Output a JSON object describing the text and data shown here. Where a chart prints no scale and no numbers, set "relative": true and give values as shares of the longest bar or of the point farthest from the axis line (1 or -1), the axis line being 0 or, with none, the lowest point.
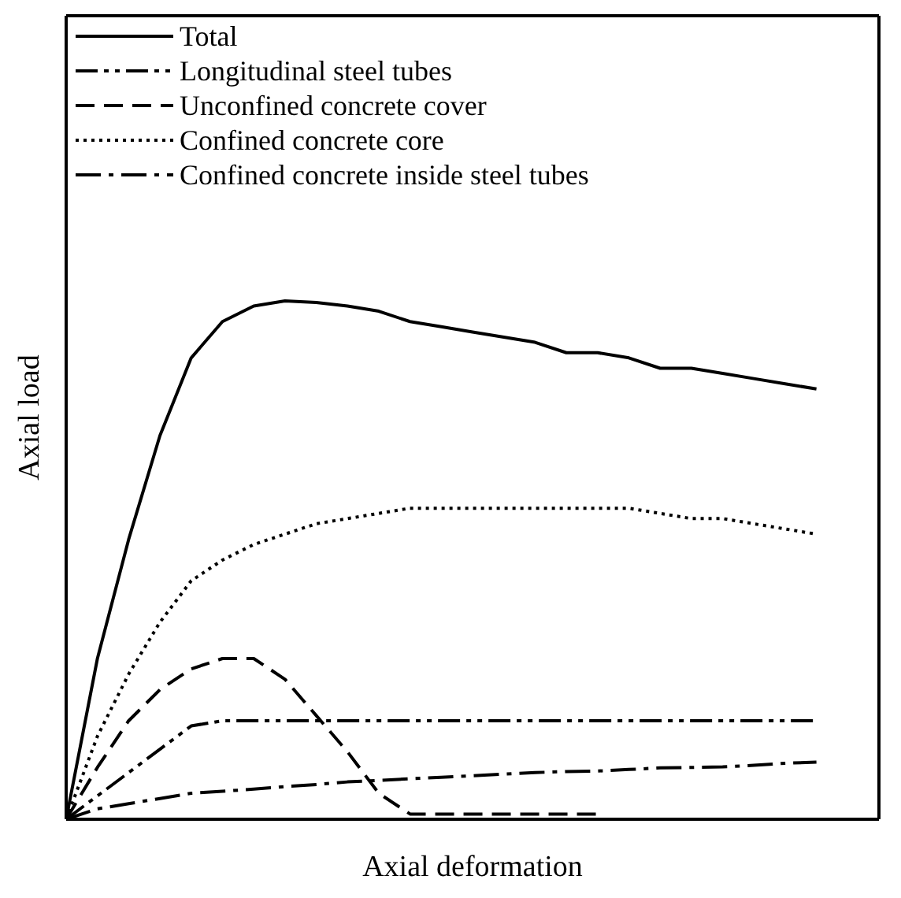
{
  "chart_data": {
    "type": "line",
    "relative": true,
    "xlabel": "Axial deformation",
    "ylabel": "Axial load",
    "legend": "top left",
    "marker": "none",
    "categories": [
      null,
      null,
      null,
      null,
      null,
      null,
      null,
      null,
      null,
      null,
      null,
      null,
      null,
      null,
      null,
      null,
      null,
      null,
      null,
      null,
      null,
      null,
      null,
      null,
      null,
      null,
      null
    ],
    "series": [
      {
        "name": "Total",
        "color": "#000000",
        "line_style": "solid",
        "values": [
          0,
          0.31,
          0.54,
          0.74,
          0.89,
          0.96,
          0.99,
          1,
          0.997,
          0.99,
          0.98,
          0.96,
          0.95,
          0.94,
          0.93,
          0.92,
          0.9,
          0.9,
          0.89,
          0.87,
          0.87,
          0.86,
          0.85,
          0.84,
          0.83,
          null,
          null
        ]
      },
      {
        "name": "Longitudinal steel tubes",
        "color": "#000000",
        "line_style": "dashdotdot",
        "values": [
          0,
          0.045,
          0.09,
          0.135,
          0.18,
          0.19,
          0.19,
          0.19,
          0.19,
          0.19,
          0.19,
          0.19,
          0.19,
          0.19,
          0.19,
          0.19,
          0.19,
          0.19,
          0.19,
          0.19,
          0.19,
          0.19,
          0.19,
          0.19,
          0.19,
          null,
          null
        ]
      },
      {
        "name": "Unconfined concrete cover",
        "color": "#000000",
        "line_style": "dashed",
        "values": [
          0,
          0.1,
          0.19,
          0.25,
          0.29,
          0.31,
          0.31,
          0.27,
          0.2,
          0.13,
          0.05,
          0.01,
          0.01,
          0.01,
          0.01,
          0.01,
          0.01,
          0.01,
          null,
          null,
          null,
          null,
          null,
          null,
          null,
          null,
          null
        ]
      },
      {
        "name": "Confined concrete core",
        "color": "#000000",
        "line_style": "dotted",
        "values": [
          0,
          0.16,
          0.28,
          0.38,
          0.46,
          0.5,
          0.53,
          0.55,
          0.57,
          0.58,
          0.59,
          0.6,
          0.6,
          0.6,
          0.6,
          0.6,
          0.6,
          0.6,
          0.6,
          0.59,
          0.58,
          0.58,
          0.57,
          0.56,
          0.55,
          null,
          null
        ]
      },
      {
        "name": "Confined concrete inside steel tubes",
        "color": "#000000",
        "line_style": "dashdot",
        "values": [
          0,
          0.02,
          0.03,
          0.04,
          0.05,
          0.054,
          0.058,
          0.063,
          0.067,
          0.072,
          0.075,
          0.078,
          0.081,
          0.084,
          0.087,
          0.09,
          0.092,
          0.093,
          0.096,
          0.099,
          0.1,
          0.101,
          0.104,
          0.108,
          0.11,
          null,
          null
        ]
      }
    ]
  }
}
